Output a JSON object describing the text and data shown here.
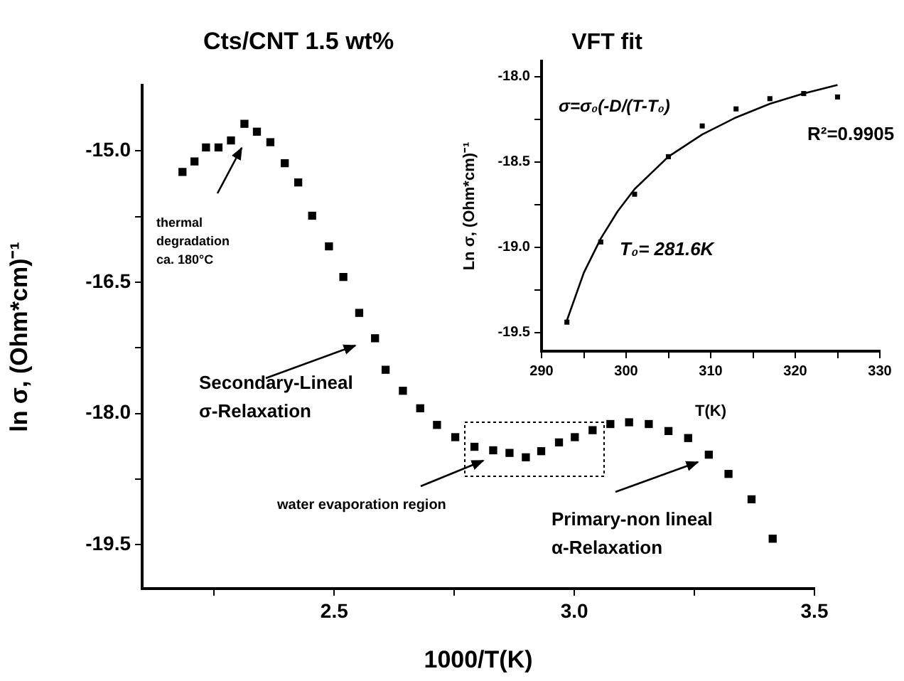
{
  "chart_data": [
    {
      "type": "scatter",
      "title": "Cts/CNT 1.5 wt%",
      "xlabel": "1000/T(K)",
      "ylabel": "ln σ, (Ohm*cm)⁻¹",
      "marker": "square",
      "color": "#000000",
      "x": [
        2.184,
        2.209,
        2.233,
        2.259,
        2.285,
        2.313,
        2.339,
        2.367,
        2.397,
        2.425,
        2.454,
        2.489,
        2.519,
        2.552,
        2.585,
        2.607,
        2.643,
        2.679,
        2.714,
        2.752,
        2.792,
        2.831,
        2.865,
        2.899,
        2.931,
        2.968,
        3.001,
        3.038,
        3.075,
        3.114,
        3.155,
        3.196,
        3.237,
        3.28,
        3.321,
        3.369,
        3.413
      ],
      "values": [
        -15.24,
        -15.12,
        -14.96,
        -14.96,
        -14.88,
        -14.69,
        -14.78,
        -14.9,
        -15.14,
        -15.36,
        -15.74,
        -16.09,
        -16.44,
        -16.85,
        -17.14,
        -17.5,
        -17.74,
        -17.94,
        -18.13,
        -18.27,
        -18.38,
        -18.42,
        -18.45,
        -18.5,
        -18.43,
        -18.33,
        -18.27,
        -18.19,
        -18.12,
        -18.1,
        -18.12,
        -18.2,
        -18.28,
        -18.47,
        -18.69,
        -18.98,
        -19.43
      ],
      "xlim": [
        2.1,
        3.5
      ],
      "xticks": [
        {
          "value": 2.25,
          "label": null
        },
        2.5,
        {
          "value": 2.75,
          "label": null
        },
        {
          "value": 3.0,
          "label": "3.0"
        },
        {
          "value": 3.25,
          "label": null
        },
        3.5
      ],
      "ylim": [
        -20.0,
        -14.25
      ],
      "yticks": [
        {
          "value": -19.5,
          "label": "-19.5"
        },
        {
          "value": -18.75,
          "label": null
        },
        {
          "value": -18.0,
          "label": "-18.0"
        },
        {
          "value": -17.25,
          "label": null
        },
        {
          "value": -16.5,
          "label": "-16.5"
        },
        {
          "value": -15.75,
          "label": null
        },
        {
          "value": -15.0,
          "label": "-15.0"
        }
      ],
      "annotations": [
        "thermal\ndegradation\nca. 180°C",
        "Secondary-Lineal\nσ-Relaxation",
        "water evaporation region",
        "Primary-non lineal\nα-Relaxation"
      ]
    },
    {
      "type": "scatter",
      "title": "VFT fit",
      "xlabel": "T(K)",
      "ylabel": "Ln σ, (Ohm*cm)⁻¹",
      "series": [
        {
          "marker": "square",
          "color": "#000000",
          "x": [
            293,
            297,
            301,
            305,
            309,
            313,
            317,
            321,
            325
          ],
          "values": [
            -19.44,
            -18.97,
            -18.69,
            -18.47,
            -18.29,
            -18.19,
            -18.13,
            -18.1,
            -18.12
          ]
        },
        {
          "type": "line",
          "marker": "none",
          "color": "#000000",
          "x": [
            293,
            295,
            297,
            299,
            301,
            305,
            309,
            313,
            317,
            321,
            325
          ],
          "values": [
            -19.43,
            -19.15,
            -18.95,
            -18.79,
            -18.66,
            -18.47,
            -18.34,
            -18.24,
            -18.16,
            -18.1,
            -18.05
          ]
        }
      ],
      "xlim": [
        290,
        330
      ],
      "xticks": [
        290,
        {
          "value": 295,
          "label": null
        },
        300,
        {
          "value": 305,
          "label": null
        },
        310,
        {
          "value": 315,
          "label": null
        },
        320,
        {
          "value": 325,
          "label": null
        },
        330
      ],
      "ylim": [
        -19.61,
        -17.91
      ],
      "yticks": [
        {
          "value": -19.5,
          "label": "-19.5"
        },
        {
          "value": -19.25,
          "label": null
        },
        {
          "value": -19.0,
          "label": "-19.0"
        },
        {
          "value": -18.75,
          "label": null
        },
        {
          "value": -18.5,
          "label": "-18.5"
        },
        {
          "value": -18.25,
          "label": null
        },
        {
          "value": -18.0,
          "label": "-18.0"
        }
      ],
      "annotations": [
        "σ=σ₀(-D/(T-T₀)",
        "R²=0.9905",
        "T₀= 281.6K"
      ]
    }
  ]
}
